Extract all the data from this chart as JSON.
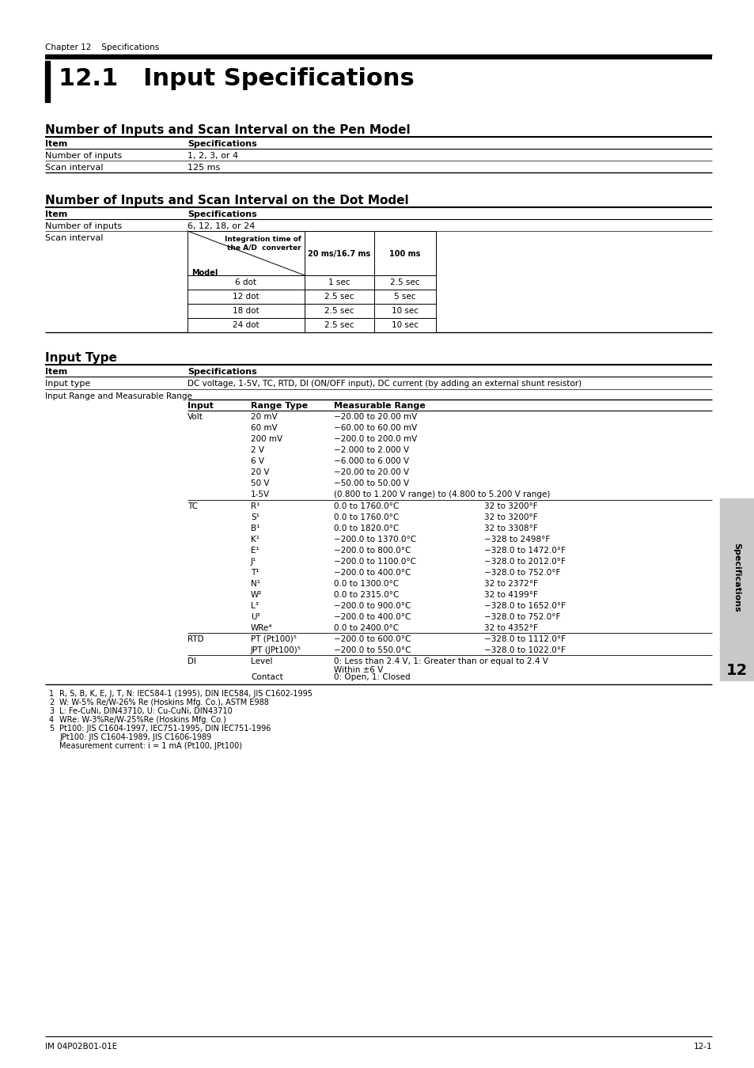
{
  "page_bg": "#ffffff",
  "chapter_label": "Chapter 12    Specifications",
  "main_title": "12.1   Input Specifications",
  "section1_title": "Number of Inputs and Scan Interval on the Pen Model",
  "section2_title": "Number of Inputs and Scan Interval on the Dot Model",
  "section3_title": "Input Type",
  "pen_table_headers": [
    "Item",
    "Specifications"
  ],
  "pen_table_rows": [
    [
      "Number of inputs",
      "1, 2, 3, or 4"
    ],
    [
      "Scan interval",
      "125 ms"
    ]
  ],
  "dot_table_headers": [
    "Item",
    "Specifications"
  ],
  "dot_table_row1": [
    "Number of inputs",
    "6, 12, 18, or 24"
  ],
  "dot_inner_rows": [
    [
      "6 dot",
      "1 sec",
      "2.5 sec"
    ],
    [
      "12 dot",
      "2.5 sec",
      "5 sec"
    ],
    [
      "18 dot",
      "2.5 sec",
      "10 sec"
    ],
    [
      "24 dot",
      "2.5 sec",
      "10 sec"
    ]
  ],
  "input_type_table_headers": [
    "Item",
    "Specifications"
  ],
  "input_type_row1": [
    "Input type",
    "DC voltage, 1-5V, TC, RTD, DI (ON/OFF input), DC current (by adding an external shunt resistor)"
  ],
  "input_range_label": "Input Range and Measurable Range",
  "input_range_subheaders": [
    "Input",
    "Range Type",
    "Measurable Range"
  ],
  "volt_rows": [
    [
      "Volt",
      "20 mV",
      "−20.00 to 20.00 mV",
      ""
    ],
    [
      "",
      "60 mV",
      "−60.00 to 60.00 mV",
      ""
    ],
    [
      "",
      "200 mV",
      "−200.0 to 200.0 mV",
      ""
    ],
    [
      "",
      "2 V",
      "−2.000 to 2.000 V",
      ""
    ],
    [
      "",
      "6 V",
      "−6.000 to 6.000 V",
      ""
    ],
    [
      "",
      "20 V",
      "−20.00 to 20.00 V",
      ""
    ],
    [
      "",
      "50 V",
      "−50.00 to 50.00 V",
      ""
    ],
    [
      "",
      "1-5V",
      "(0.800 to 1.200 V range) to (4.800 to 5.200 V range)",
      ""
    ]
  ],
  "tc_rows": [
    [
      "TC",
      "R¹",
      "0.0 to 1760.0°C",
      "32 to 3200°F"
    ],
    [
      "",
      "S¹",
      "0.0 to 1760.0°C",
      "32 to 3200°F"
    ],
    [
      "",
      "B¹",
      "0.0 to 1820.0°C",
      "32 to 3308°F"
    ],
    [
      "",
      "K¹",
      "−200.0 to 1370.0°C",
      "−328 to 2498°F"
    ],
    [
      "",
      "E¹",
      "−200.0 to 800.0°C",
      "−328.0 to 1472.0°F"
    ],
    [
      "",
      "J¹",
      "−200.0 to 1100.0°C",
      "−328.0 to 2012.0°F"
    ],
    [
      "",
      "T¹",
      "−200.0 to 400.0°C",
      "−328.0 to 752.0°F"
    ],
    [
      "",
      "N¹",
      "0.0 to 1300.0°C",
      "32 to 2372°F"
    ],
    [
      "",
      "W²",
      "0.0 to 2315.0°C",
      "32 to 4199°F"
    ],
    [
      "",
      "L³",
      "−200.0 to 900.0°C",
      "−328.0 to 1652.0°F"
    ],
    [
      "",
      "U³",
      "−200.0 to 400.0°C",
      "−328.0 to 752.0°F"
    ],
    [
      "",
      "WRe⁴",
      "0.0 to 2400.0°C",
      "32 to 4352°F"
    ]
  ],
  "rtd_rows": [
    [
      "RTD",
      "PT (Pt100)⁵",
      "−200.0 to 600.0°C",
      "−328.0 to 1112.0°F"
    ],
    [
      "",
      "JPT (JPt100)⁵",
      "−200.0 to 550.0°C",
      "−328.0 to 1022.0°F"
    ]
  ],
  "di_rows": [
    [
      "DI",
      "Level",
      "0: Less than 2.4 V, 1: Greater than or equal to 2.4 V\nWithin ±6 V",
      ""
    ],
    [
      "",
      "Contact",
      "0: Open, 1: Closed",
      ""
    ]
  ],
  "footnotes": [
    [
      "1",
      "R, S, B, K, E, J, T, N: IEC584-1 (1995), DIN IEC584, JIS C1602-1995"
    ],
    [
      "2",
      "W: W-5% Re/W-26% Re (Hoskins Mfg. Co.), ASTM E988"
    ],
    [
      "3",
      "L: Fe-CuNi, DIN43710, U: Cu-CuNi, DIN43710"
    ],
    [
      "4",
      "WRe: W-3%Re/W-25%Re (Hoskins Mfg. Co.)"
    ],
    [
      "5",
      "Pt100: JIS C1604-1997, IEC751-1995, DIN IEC751-1996"
    ],
    [
      "",
      "JPt100: JIS C1604-1989, JIS C1606-1989"
    ],
    [
      "",
      "Measurement current: i = 1 mA (Pt100, JPt100)"
    ]
  ],
  "footer_left": "IM 04P02B01-01E",
  "footer_right": "12-1",
  "sidebar_text": "Specifications",
  "sidebar_chapter": "12"
}
